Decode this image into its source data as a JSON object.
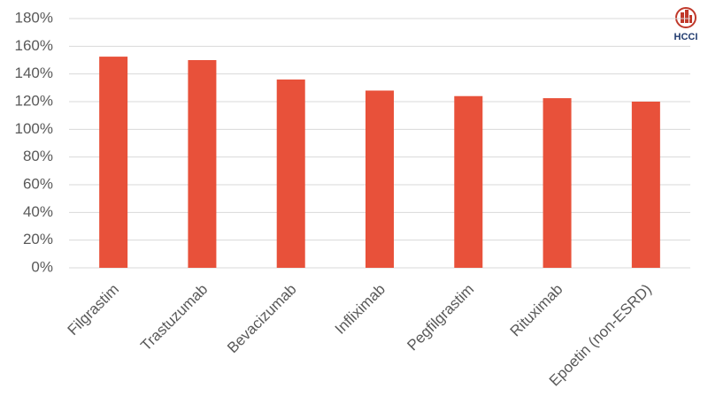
{
  "chart_data": {
    "type": "bar",
    "categories": [
      "Filgrastim",
      "Trastuzumab",
      "Bevacizumab",
      "Infliximab",
      "Pegfilgrastim",
      "Rituximab",
      "Epoetin (non-ESRD)"
    ],
    "values": [
      152.5,
      150,
      136,
      128,
      124,
      122.5,
      120
    ],
    "color": "#e8513a",
    "ylim": [
      0,
      180
    ],
    "yticks": [
      {
        "value": 0,
        "label": "0%"
      },
      {
        "value": 20,
        "label": "20%"
      },
      {
        "value": 40,
        "label": "40%"
      },
      {
        "value": 60,
        "label": "60%"
      },
      {
        "value": 80,
        "label": "80%"
      },
      {
        "value": 100,
        "label": "100%"
      },
      {
        "value": 120,
        "label": "120%"
      },
      {
        "value": 140,
        "label": "140%"
      },
      {
        "value": 160,
        "label": "160%"
      },
      {
        "value": 180,
        "label": "180%"
      }
    ],
    "grid": true
  },
  "logo": {
    "text": "HCCI"
  }
}
